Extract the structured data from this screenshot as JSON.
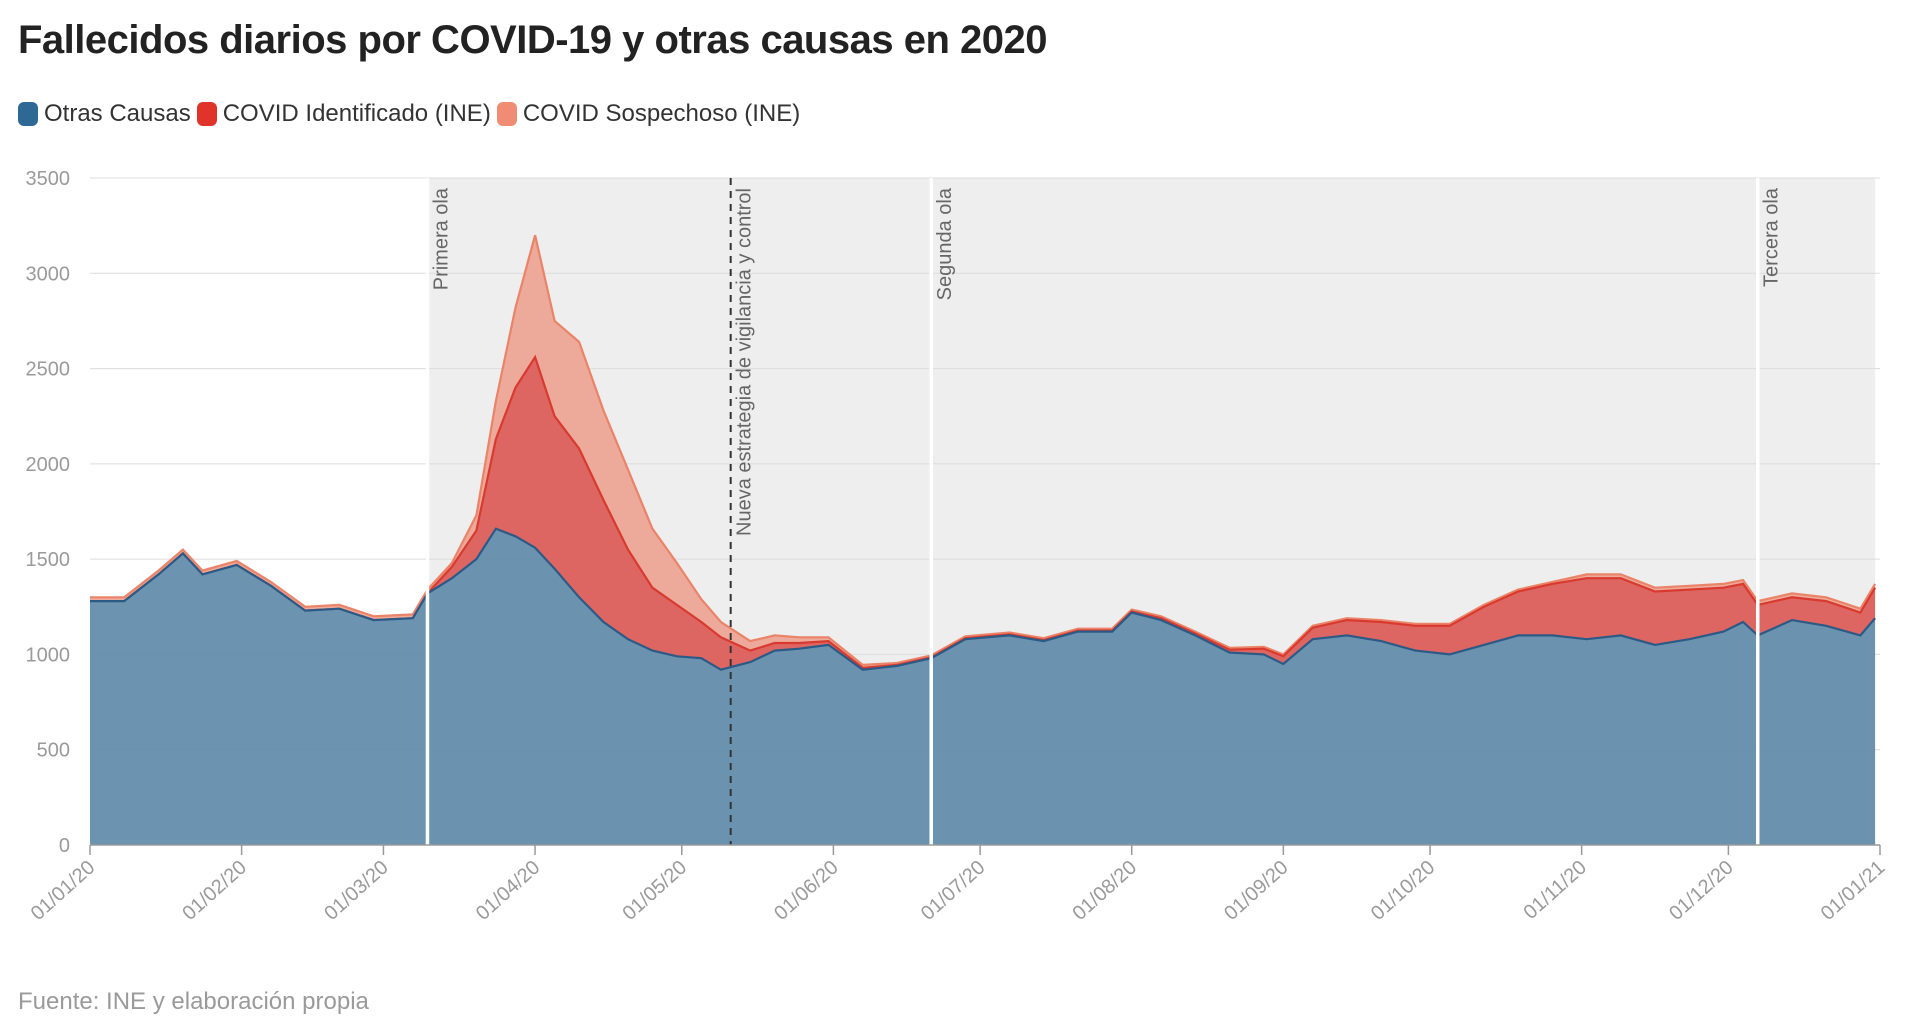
{
  "title": "Fallecidos diarios por COVID-19 y otras causas en 2020",
  "source": "Fuente: INE y elaboración propia",
  "colors": {
    "otras": "#5f8ba9",
    "otras_line": "#2c5a86",
    "covid_identificado": "#dc5a56",
    "covid_identificado_line": "#d93a2f",
    "covid_sospechoso": "#eda492",
    "covid_sospechoso_line": "#ea8368",
    "shade": "#eeeeee",
    "legend_otras": "#2e6996",
    "legend_identificado": "#e0342b",
    "legend_sospechoso": "#f08c73"
  },
  "chart_data": {
    "type": "area",
    "stacked": true,
    "title": "Fallecidos diarios por COVID-19 y otras causas en 2020",
    "xlabel": "",
    "ylabel": "",
    "ylim": [
      0,
      3500
    ],
    "yticks": [
      0,
      500,
      1000,
      1500,
      2000,
      2500,
      3000,
      3500
    ],
    "xlim": [
      "2020-01-01",
      "2021-01-01"
    ],
    "xticks": [
      "01/01/20",
      "01/02/20",
      "01/03/20",
      "01/04/20",
      "01/05/20",
      "01/06/20",
      "01/07/20",
      "01/08/20",
      "01/09/20",
      "01/10/20",
      "01/11/20",
      "01/12/20",
      "01/01/21"
    ],
    "grid": "horizontal",
    "legend_position": "top-left",
    "series": [
      {
        "name": "Otras Causas",
        "x": [
          "2020-01-01",
          "2020-01-08",
          "2020-01-15",
          "2020-01-20",
          "2020-01-24",
          "2020-01-31",
          "2020-02-07",
          "2020-02-14",
          "2020-02-21",
          "2020-02-28",
          "2020-03-07",
          "2020-03-10",
          "2020-03-15",
          "2020-03-20",
          "2020-03-24",
          "2020-03-28",
          "2020-04-01",
          "2020-04-05",
          "2020-04-10",
          "2020-04-15",
          "2020-04-20",
          "2020-04-25",
          "2020-04-30",
          "2020-05-05",
          "2020-05-09",
          "2020-05-15",
          "2020-05-20",
          "2020-05-25",
          "2020-05-31",
          "2020-06-07",
          "2020-06-14",
          "2020-06-21",
          "2020-06-28",
          "2020-07-07",
          "2020-07-14",
          "2020-07-21",
          "2020-07-28",
          "2020-08-01",
          "2020-08-07",
          "2020-08-14",
          "2020-08-21",
          "2020-08-28",
          "2020-09-01",
          "2020-09-07",
          "2020-09-14",
          "2020-09-21",
          "2020-09-28",
          "2020-10-05",
          "2020-10-12",
          "2020-10-19",
          "2020-10-26",
          "2020-11-02",
          "2020-11-09",
          "2020-11-16",
          "2020-11-23",
          "2020-11-30",
          "2020-12-04",
          "2020-12-07",
          "2020-12-14",
          "2020-12-21",
          "2020-12-28",
          "2020-12-31"
        ],
        "values": [
          1280,
          1280,
          1420,
          1530,
          1420,
          1470,
          1360,
          1230,
          1240,
          1180,
          1190,
          1320,
          1400,
          1500,
          1660,
          1620,
          1560,
          1450,
          1300,
          1170,
          1080,
          1020,
          990,
          980,
          920,
          960,
          1020,
          1030,
          1050,
          920,
          940,
          980,
          1080,
          1100,
          1070,
          1120,
          1120,
          1220,
          1180,
          1100,
          1010,
          1000,
          950,
          1080,
          1100,
          1070,
          1020,
          1000,
          1050,
          1100,
          1100,
          1080,
          1100,
          1050,
          1080,
          1120,
          1170,
          1100,
          1180,
          1150,
          1100,
          1190
        ]
      },
      {
        "name": "COVID Identificado (INE)",
        "x": [
          "2020-01-01",
          "2020-01-08",
          "2020-01-15",
          "2020-01-20",
          "2020-01-24",
          "2020-01-31",
          "2020-02-07",
          "2020-02-14",
          "2020-02-21",
          "2020-02-28",
          "2020-03-07",
          "2020-03-10",
          "2020-03-15",
          "2020-03-20",
          "2020-03-24",
          "2020-03-28",
          "2020-04-01",
          "2020-04-05",
          "2020-04-10",
          "2020-04-15",
          "2020-04-20",
          "2020-04-25",
          "2020-04-30",
          "2020-05-05",
          "2020-05-09",
          "2020-05-15",
          "2020-05-20",
          "2020-05-25",
          "2020-05-31",
          "2020-06-07",
          "2020-06-14",
          "2020-06-21",
          "2020-06-28",
          "2020-07-07",
          "2020-07-14",
          "2020-07-21",
          "2020-07-28",
          "2020-08-01",
          "2020-08-07",
          "2020-08-14",
          "2020-08-21",
          "2020-08-28",
          "2020-09-01",
          "2020-09-07",
          "2020-09-14",
          "2020-09-21",
          "2020-09-28",
          "2020-10-05",
          "2020-10-12",
          "2020-10-19",
          "2020-10-26",
          "2020-11-02",
          "2020-11-09",
          "2020-11-16",
          "2020-11-23",
          "2020-11-30",
          "2020-12-04",
          "2020-12-07",
          "2020-12-14",
          "2020-12-21",
          "2020-12-28",
          "2020-12-31"
        ],
        "values": [
          0,
          0,
          0,
          0,
          0,
          0,
          0,
          0,
          0,
          0,
          0,
          0,
          60,
          150,
          470,
          780,
          1000,
          800,
          780,
          640,
          470,
          330,
          270,
          190,
          170,
          60,
          40,
          30,
          20,
          10,
          5,
          5,
          5,
          5,
          5,
          5,
          5,
          5,
          10,
          10,
          15,
          30,
          40,
          60,
          80,
          100,
          130,
          150,
          200,
          230,
          270,
          320,
          300,
          280,
          260,
          230,
          200,
          160,
          120,
          130,
          120,
          160
        ]
      },
      {
        "name": "COVID Sospechoso (INE)",
        "x": [
          "2020-01-01",
          "2020-01-08",
          "2020-01-15",
          "2020-01-20",
          "2020-01-24",
          "2020-01-31",
          "2020-02-07",
          "2020-02-14",
          "2020-02-21",
          "2020-02-28",
          "2020-03-07",
          "2020-03-10",
          "2020-03-15",
          "2020-03-20",
          "2020-03-24",
          "2020-03-28",
          "2020-04-01",
          "2020-04-05",
          "2020-04-10",
          "2020-04-15",
          "2020-04-20",
          "2020-04-25",
          "2020-04-30",
          "2020-05-05",
          "2020-05-09",
          "2020-05-15",
          "2020-05-20",
          "2020-05-25",
          "2020-05-31",
          "2020-06-07",
          "2020-06-14",
          "2020-06-21",
          "2020-06-28",
          "2020-07-07",
          "2020-07-14",
          "2020-07-21",
          "2020-07-28",
          "2020-08-01",
          "2020-08-07",
          "2020-08-14",
          "2020-08-21",
          "2020-08-28",
          "2020-09-01",
          "2020-09-07",
          "2020-09-14",
          "2020-09-21",
          "2020-09-28",
          "2020-10-05",
          "2020-10-12",
          "2020-10-19",
          "2020-10-26",
          "2020-11-02",
          "2020-11-09",
          "2020-11-16",
          "2020-11-23",
          "2020-11-30",
          "2020-12-04",
          "2020-12-07",
          "2020-12-14",
          "2020-12-21",
          "2020-12-28",
          "2020-12-31"
        ],
        "values": [
          20,
          20,
          20,
          20,
          20,
          20,
          20,
          20,
          20,
          20,
          20,
          20,
          20,
          80,
          200,
          420,
          640,
          500,
          560,
          470,
          420,
          310,
          220,
          120,
          80,
          50,
          40,
          30,
          20,
          15,
          10,
          10,
          10,
          10,
          10,
          10,
          10,
          10,
          10,
          10,
          10,
          10,
          10,
          10,
          10,
          10,
          10,
          10,
          10,
          10,
          10,
          20,
          20,
          20,
          20,
          20,
          20,
          20,
          20,
          20,
          20,
          20
        ]
      }
    ],
    "annotations": [
      {
        "label": "Primera ola",
        "date": "2020-03-10",
        "style": "solid"
      },
      {
        "label": "Nueva estrategia de vigilancia y control",
        "date": "2020-05-11",
        "style": "dashed"
      },
      {
        "label": "Segunda ola",
        "date": "2020-06-21",
        "style": "solid"
      },
      {
        "label": "Tercera ola",
        "date": "2020-12-07",
        "style": "solid"
      }
    ],
    "shaded_ranges": [
      {
        "from": "2020-03-10",
        "to": "2020-12-31"
      }
    ]
  }
}
